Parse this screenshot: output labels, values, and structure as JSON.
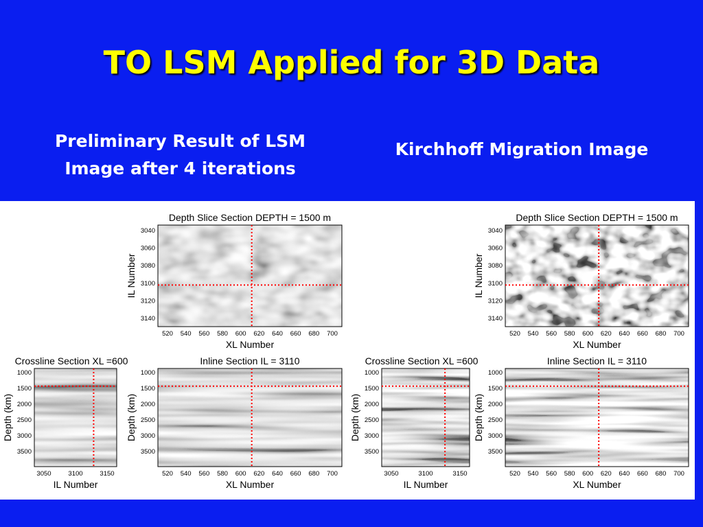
{
  "slide": {
    "title": "TO LSM Applied for 3D Data",
    "caption_left_line1": "Preliminary Result of LSM",
    "caption_left_line2": "Image after 4 iterations",
    "caption_right": "Kirchhoff Migration Image"
  },
  "figures": [
    {
      "id": "lsm",
      "depth_slice": {
        "title": "Depth Slice Section DEPTH = 1500 m",
        "xlabel": "XL Number",
        "ylabel": "IL Number",
        "xticks": [
          "520",
          "540",
          "560",
          "580",
          "600",
          "620",
          "640",
          "660",
          "680",
          "700"
        ],
        "yticks": [
          "3040",
          "3060",
          "3080",
          "3100",
          "3120",
          "3140"
        ]
      },
      "crossline": {
        "title": "Crossline Section XL =600",
        "xlabel": "IL Number",
        "ylabel": "Depth (km)",
        "xticks": [
          "3050",
          "3100",
          "3150"
        ],
        "yticks": [
          "1000",
          "1500",
          "2000",
          "2500",
          "3000",
          "3500"
        ]
      },
      "inline": {
        "title": "Inline Section IL = 3110",
        "xlabel": "XL Number",
        "ylabel": "Depth (km)",
        "xticks": [
          "520",
          "540",
          "560",
          "580",
          "600",
          "620",
          "640",
          "660",
          "680",
          "700"
        ],
        "yticks": [
          "1000",
          "1500",
          "2000",
          "2500",
          "3000",
          "3500"
        ]
      }
    },
    {
      "id": "kirchhoff",
      "depth_slice": {
        "title": "Depth Slice Section DEPTH = 1500 m",
        "xlabel": "XL Number",
        "ylabel": "IL Number",
        "xticks": [
          "520",
          "540",
          "560",
          "580",
          "600",
          "620",
          "640",
          "660",
          "680",
          "700"
        ],
        "yticks": [
          "3040",
          "3060",
          "3080",
          "3100",
          "3120",
          "3140"
        ]
      },
      "crossline": {
        "title": "Crossline Section XL =600",
        "xlabel": "IL Number",
        "ylabel": "Depth (km)",
        "xticks": [
          "3050",
          "3100",
          "3150"
        ],
        "yticks": [
          "1000",
          "1500",
          "2000",
          "2500",
          "3000",
          "3500"
        ]
      },
      "inline": {
        "title": "Inline Section IL = 3110",
        "xlabel": "XL Number",
        "ylabel": "Depth (km)",
        "xticks": [
          "520",
          "540",
          "560",
          "580",
          "600",
          "620",
          "640",
          "660",
          "680",
          "700"
        ],
        "yticks": [
          "1000",
          "1500",
          "2000",
          "2500",
          "3000",
          "3500"
        ]
      }
    }
  ],
  "colors": {
    "background": "#0a1ef0",
    "title": "#ffff00",
    "crosshair": "#ff0000"
  }
}
